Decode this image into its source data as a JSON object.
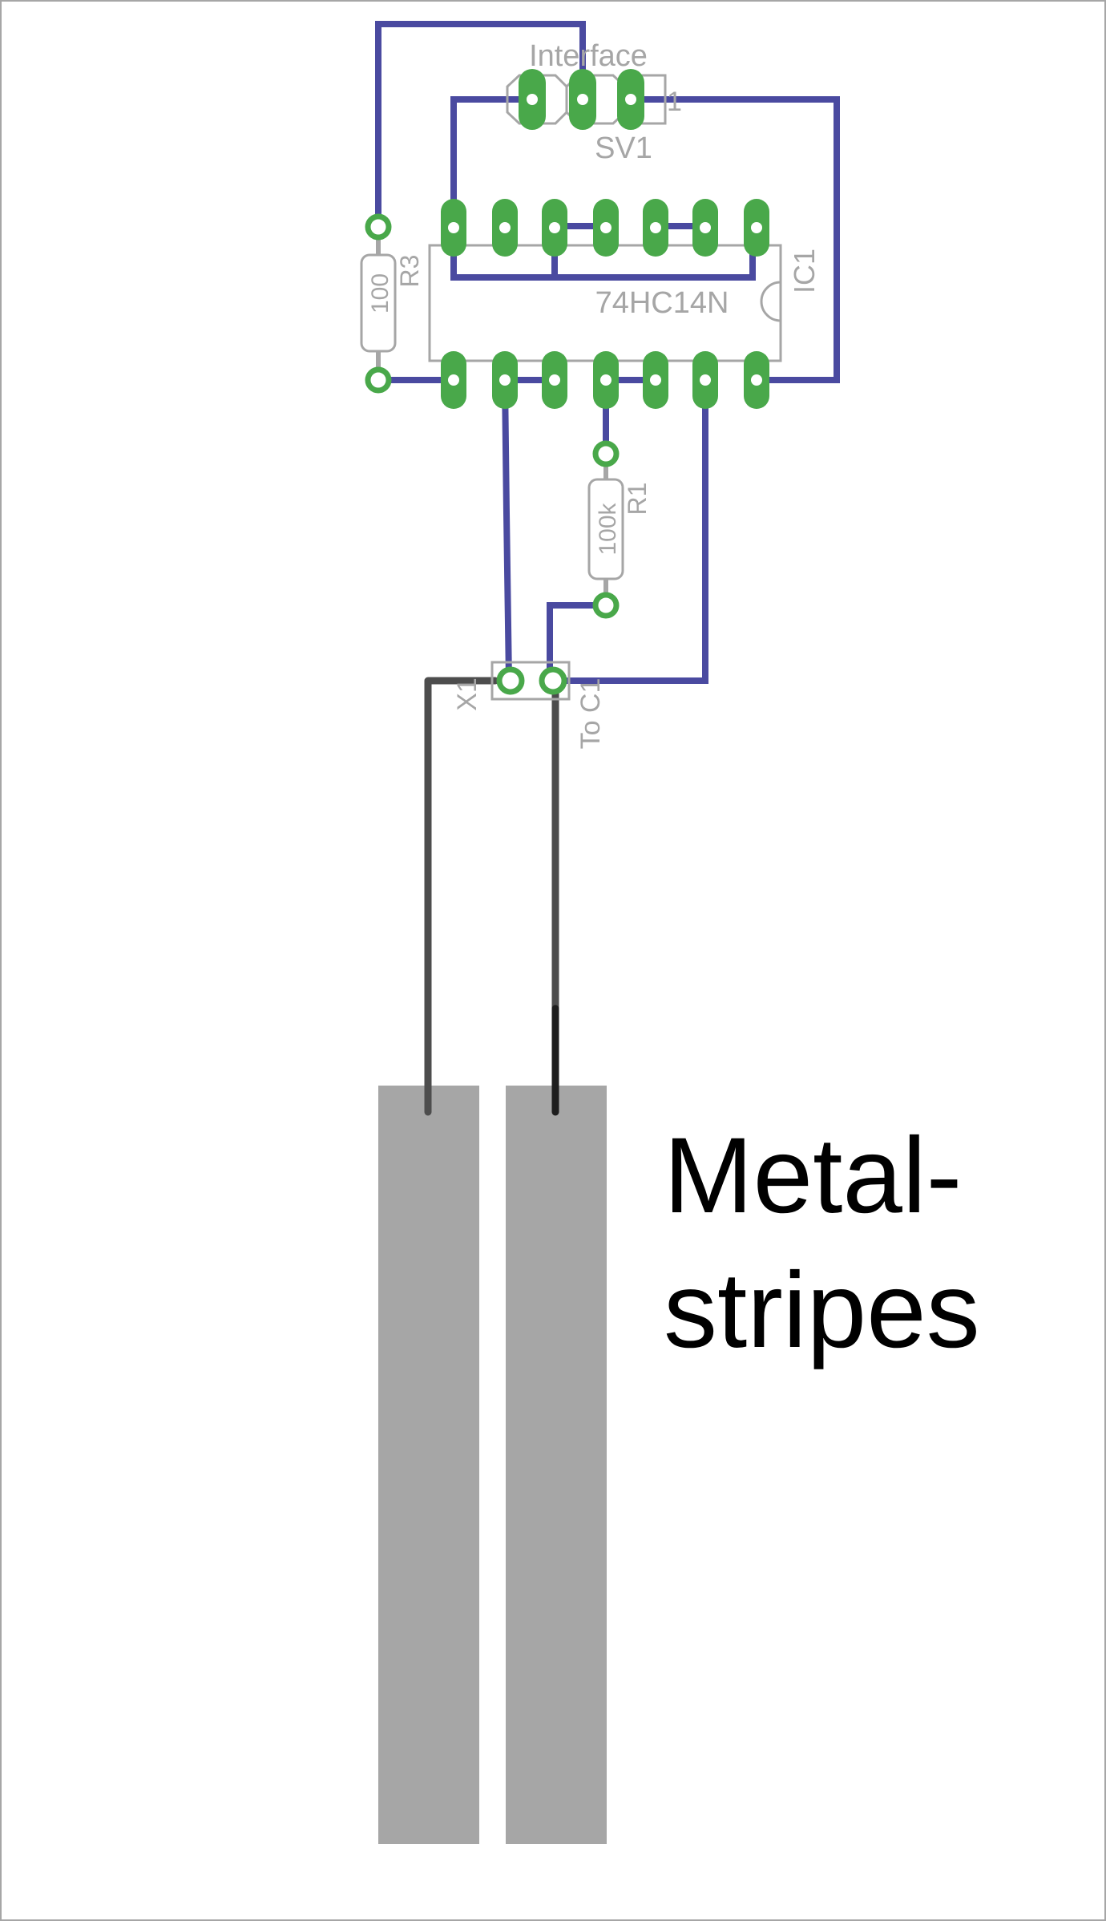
{
  "colors": {
    "trace": "#4a4aa0",
    "pad": "#49a84a",
    "silkscreen": "#a6a6a6",
    "wire": "#4d4d4d",
    "stripe": "#a6a6a6",
    "text": "#000000",
    "border": "#a6a6a6"
  },
  "labels": {
    "connector_title": "Interface",
    "connector_ref": "SV1",
    "connector_pin1": "1",
    "ic_part": "74HC14N",
    "ic_ref": "IC1",
    "r3_ref": "R3",
    "r3_value": "100",
    "r1_ref": "R1",
    "r1_value": "100k",
    "x_ref": "X1",
    "x_value": "To C1",
    "stripes_line1": "Metal-",
    "stripes_line2": "stripes"
  }
}
